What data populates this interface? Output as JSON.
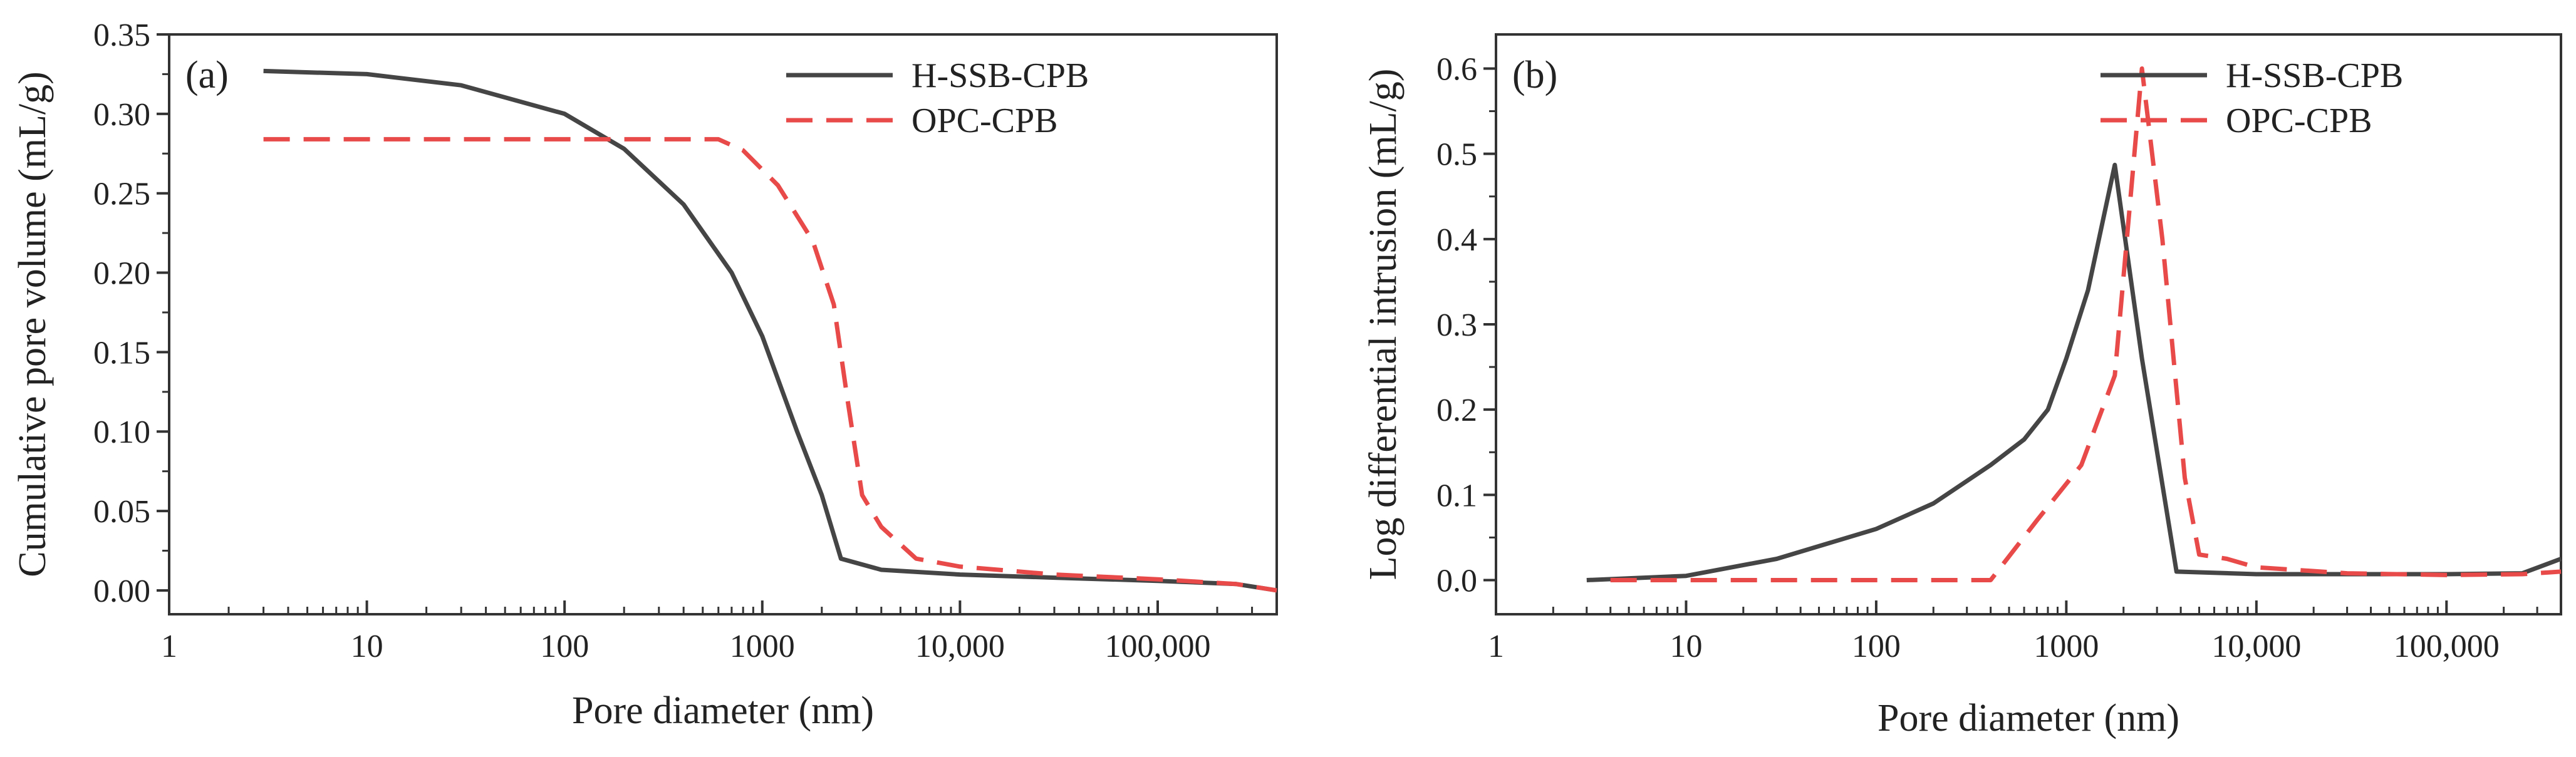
{
  "chart_data": [
    {
      "type": "line",
      "panel_label": "(a)",
      "title": "",
      "xlabel": "Pore diameter (nm)",
      "ylabel": "Cumulative pore volume (mL/g)",
      "xscale": "log",
      "xlim": [
        1,
        400000
      ],
      "ylim": [
        -0.015,
        0.35
      ],
      "xticks": [
        1,
        10,
        100,
        1000,
        10000,
        100000
      ],
      "xtick_labels": [
        "1",
        "10",
        "100",
        "1000",
        "10,000",
        "100,000"
      ],
      "yticks": [
        0.0,
        0.05,
        0.1,
        0.15,
        0.2,
        0.25,
        0.3,
        0.35
      ],
      "ytick_labels": [
        "0.00",
        "0.05",
        "0.10",
        "0.15",
        "0.20",
        "0.25",
        "0.30",
        "0.35"
      ],
      "legend_position": "top-right",
      "series": [
        {
          "name": "H-SSB-CPB",
          "color": "#454545",
          "style": "solid",
          "x": [
            3,
            10,
            30,
            100,
            200,
            400,
            700,
            1000,
            1500,
            2000,
            2500,
            4000,
            10000,
            30000,
            100000,
            250000,
            400000
          ],
          "y": [
            0.327,
            0.325,
            0.318,
            0.3,
            0.278,
            0.243,
            0.2,
            0.16,
            0.1,
            0.06,
            0.02,
            0.013,
            0.01,
            0.008,
            0.006,
            0.004,
            0.0
          ]
        },
        {
          "name": "OPC-CPB",
          "color": "#E84A4A",
          "style": "dashed",
          "x": [
            3,
            100,
            600,
            800,
            1200,
            1800,
            2300,
            2700,
            3200,
            4000,
            6000,
            10000,
            30000,
            100000,
            250000,
            400000
          ],
          "y": [
            0.284,
            0.284,
            0.284,
            0.277,
            0.255,
            0.22,
            0.18,
            0.12,
            0.06,
            0.04,
            0.02,
            0.015,
            0.01,
            0.007,
            0.004,
            0.0
          ]
        }
      ]
    },
    {
      "type": "line",
      "panel_label": "(b)",
      "title": "",
      "xlabel": "Pore diameter (nm)",
      "ylabel": "Log differential intrusion (mL/g)",
      "xscale": "log",
      "xlim": [
        1,
        400000
      ],
      "ylim": [
        -0.04,
        0.64
      ],
      "xticks": [
        1,
        10,
        100,
        1000,
        10000,
        100000
      ],
      "xtick_labels": [
        "1",
        "10",
        "100",
        "1000",
        "10,000",
        "100,000"
      ],
      "yticks": [
        0.0,
        0.1,
        0.2,
        0.3,
        0.4,
        0.5,
        0.6
      ],
      "ytick_labels": [
        "0.0",
        "0.1",
        "0.2",
        "0.3",
        "0.4",
        "0.5",
        "0.6"
      ],
      "legend_position": "top-right",
      "series": [
        {
          "name": "H-SSB-CPB",
          "color": "#454545",
          "style": "solid",
          "x": [
            3,
            10,
            30,
            100,
            200,
            400,
            600,
            800,
            1000,
            1300,
            1800,
            2500,
            3800,
            10000,
            30000,
            100000,
            250000,
            400000
          ],
          "y": [
            0.0,
            0.005,
            0.025,
            0.06,
            0.09,
            0.135,
            0.165,
            0.2,
            0.26,
            0.34,
            0.487,
            0.26,
            0.01,
            0.007,
            0.007,
            0.007,
            0.008,
            0.025
          ]
        },
        {
          "name": "OPC-CPB",
          "color": "#E84A4A",
          "style": "dashed",
          "x": [
            4,
            100,
            400,
            700,
            1200,
            1800,
            2500,
            3200,
            4200,
            5000,
            7000,
            10000,
            30000,
            100000,
            250000,
            400000
          ],
          "y": [
            0.0,
            0.0,
            0.0,
            0.07,
            0.135,
            0.24,
            0.6,
            0.4,
            0.12,
            0.03,
            0.025,
            0.015,
            0.008,
            0.006,
            0.007,
            0.01
          ]
        }
      ]
    }
  ]
}
